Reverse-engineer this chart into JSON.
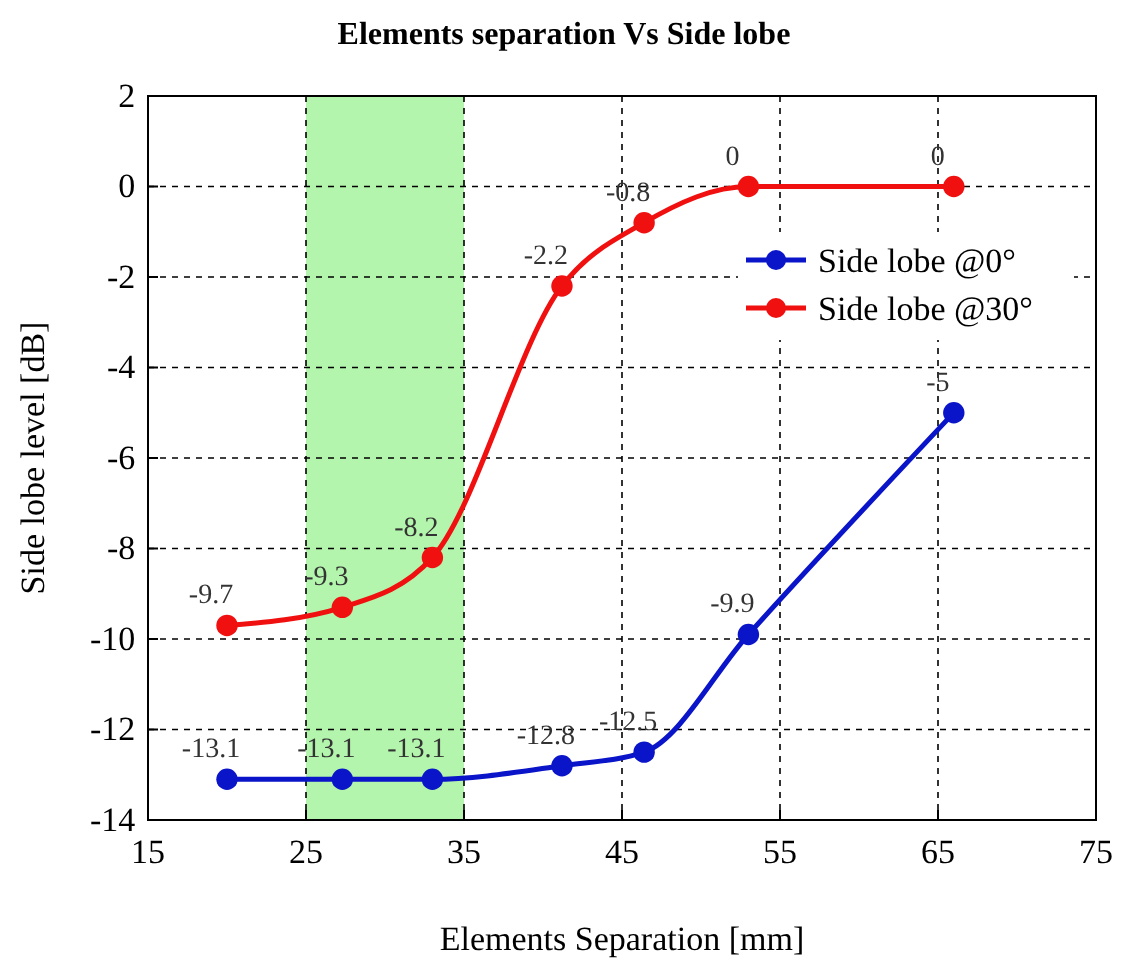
{
  "chart_data": {
    "type": "line",
    "title": "Elements separation Vs Side lobe",
    "xlabel": "Elements Separation [mm]",
    "ylabel": "Side lobe level [dB]",
    "xlim": [
      15,
      75
    ],
    "xticks": [
      15,
      25,
      35,
      45,
      55,
      65,
      75
    ],
    "ylim": [
      -14,
      2
    ],
    "yticks": [
      -14,
      -12,
      -10,
      -8,
      -6,
      -4,
      -2,
      0,
      2
    ],
    "grid": true,
    "legend": "top right",
    "marker": "circle",
    "data_labels": true,
    "bands": [
      {
        "axis": "x",
        "from": 25,
        "to": 35,
        "color": "#b3f5ac"
      }
    ],
    "series": [
      {
        "name": "Side lobe @0°",
        "color": "#0a14c8",
        "x": [
          20,
          27.3,
          33,
          41.2,
          46.4,
          53,
          66
        ],
        "values": [
          -13.1,
          -13.1,
          -13.1,
          -12.8,
          -12.5,
          -9.9,
          -5
        ]
      },
      {
        "name": "Side lobe @30°",
        "color": "#f01010",
        "x": [
          20,
          27.3,
          33,
          41.2,
          46.4,
          53,
          66
        ],
        "values": [
          -9.7,
          -9.3,
          -8.2,
          -2.2,
          -0.8,
          0,
          0
        ]
      }
    ]
  }
}
